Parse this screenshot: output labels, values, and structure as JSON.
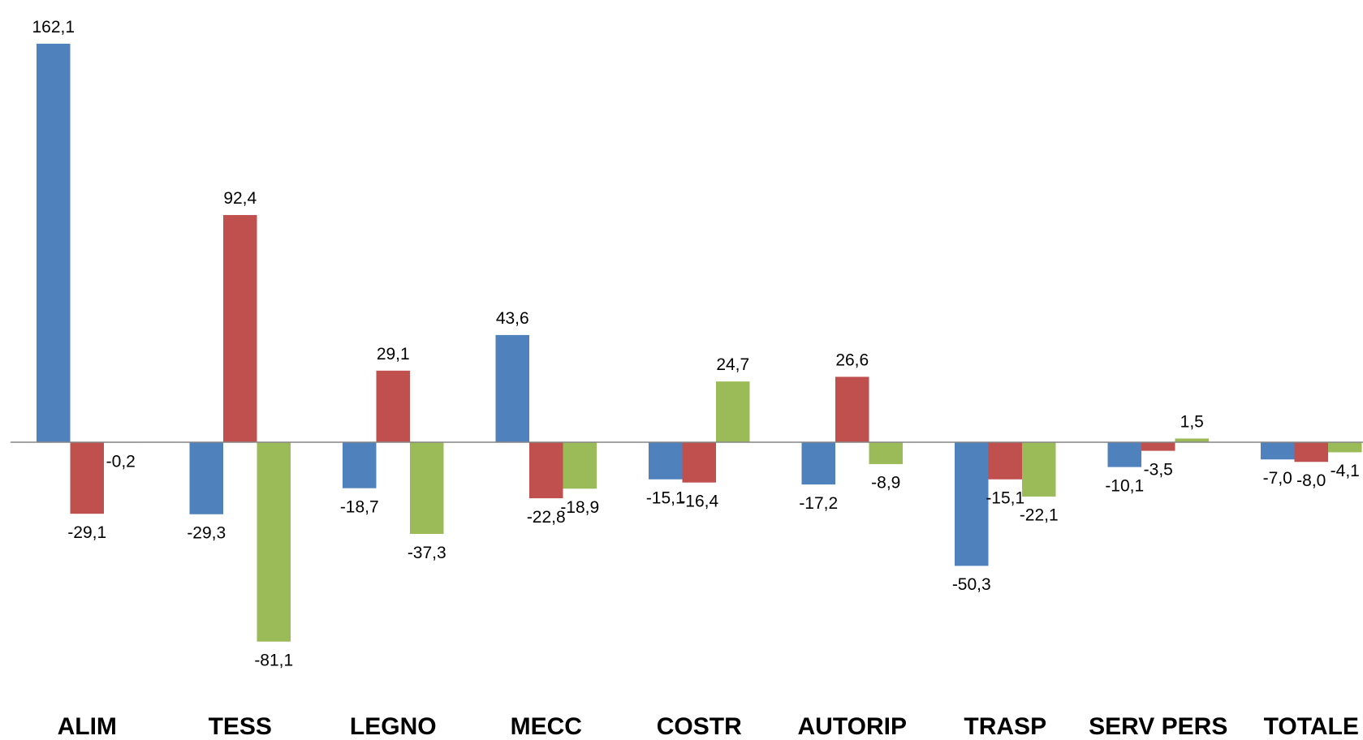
{
  "chart_data": {
    "type": "bar",
    "title": "",
    "xlabel": "",
    "ylabel": "",
    "categories": [
      "ALIM",
      "TESS",
      "LEGNO",
      "MECC",
      "COSTR",
      "AUTORIP",
      "TRASP",
      "SERV PERS",
      "TOTALE"
    ],
    "series": [
      {
        "color": "#4F81BD",
        "values": [
          162.1,
          -29.3,
          -18.7,
          43.6,
          -15.1,
          -17.2,
          -50.3,
          -10.1,
          -7.0
        ],
        "labels": [
          "162,1",
          "-29,3",
          "-18,7",
          "43,6",
          "-15,1",
          "-17,2",
          "-50,3",
          "-10,1",
          "-7,0"
        ]
      },
      {
        "color": "#C0504D",
        "values": [
          -29.1,
          92.4,
          29.1,
          -22.8,
          -16.4,
          26.6,
          -15.1,
          -3.5,
          -8.0
        ],
        "labels": [
          "-29,1",
          "92,4",
          "29,1",
          "-22,8",
          "-16,4",
          "26,6",
          "-15,1",
          "-3,5",
          "-8,0"
        ]
      },
      {
        "color": "#9BBB59",
        "values": [
          -0.2,
          -81.1,
          -37.3,
          -18.9,
          24.7,
          -8.9,
          -22.1,
          1.5,
          -4.1
        ],
        "labels": [
          "-0,2",
          "-81,1",
          "-37,3",
          "-18,9",
          "24,7",
          "-8,9",
          "-22,1",
          "1,5",
          "-4,1"
        ]
      }
    ],
    "ylim": [
      -90,
      170
    ],
    "grid": false,
    "legend": "none",
    "axis_color": "#868686"
  }
}
